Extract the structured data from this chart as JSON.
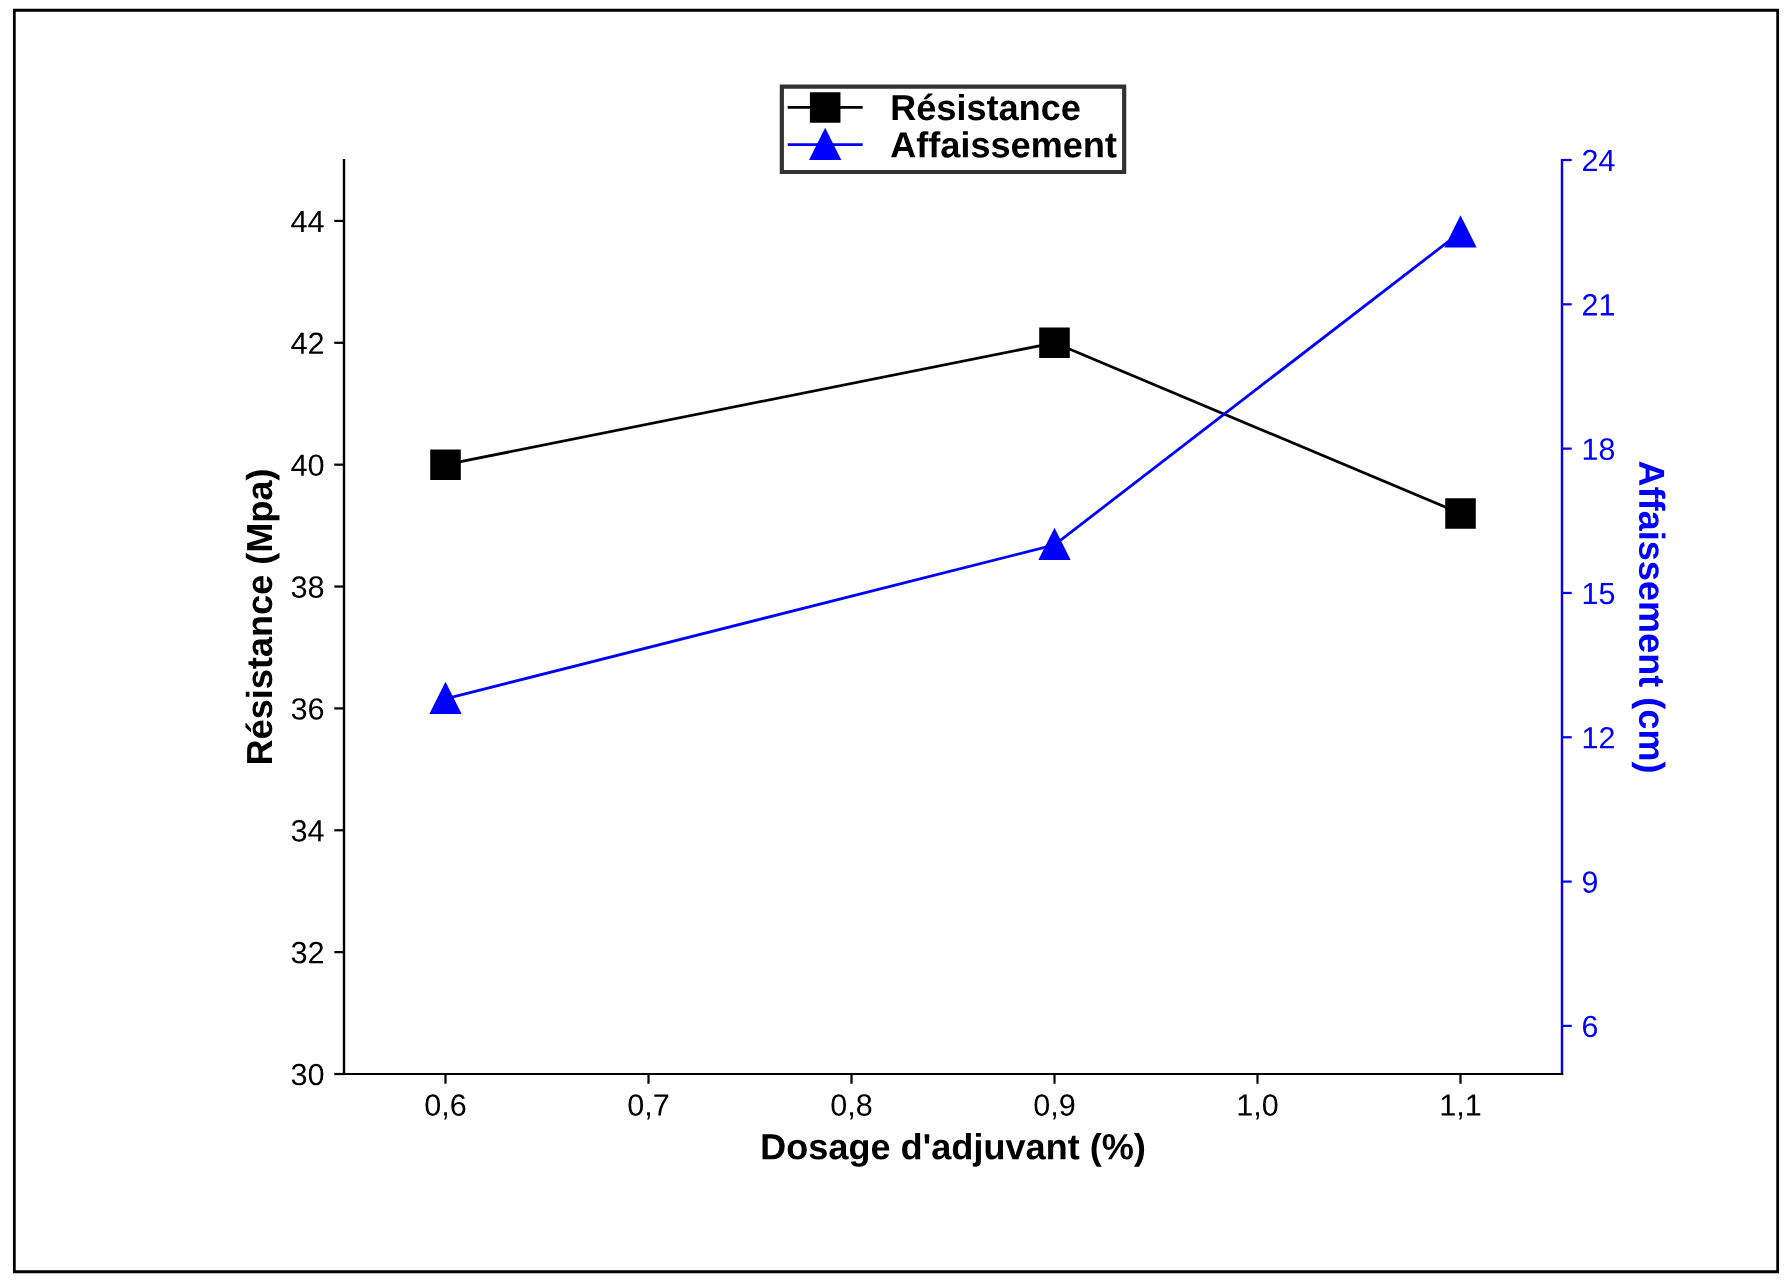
{
  "chart_data": {
    "type": "line",
    "xlabel": "Dosage d'adjuvant (%)",
    "ylabel": "Résistance (Mpa)",
    "y2label": "Affaissement (cm)",
    "x": [
      0.6,
      0.9,
      1.1
    ],
    "series": [
      {
        "name": "Résistance",
        "color": "#000000",
        "marker": "square",
        "values": [
          40,
          42,
          39.2
        ]
      },
      {
        "name": "Affaissement",
        "color": "#0000ff",
        "marker": "triangle",
        "axis": "y2",
        "values": [
          12.8,
          16.0,
          22.5
        ]
      }
    ],
    "xlim": [
      0.55,
      1.15
    ],
    "xticks": [
      {
        "value": 0.6,
        "label": "0,6"
      },
      {
        "value": 0.7,
        "label": "0,7"
      },
      {
        "value": 0.8,
        "label": "0,8"
      },
      {
        "value": 0.9,
        "label": "0,9"
      },
      {
        "value": 1.0,
        "label": "1,0"
      },
      {
        "value": 1.1,
        "label": "1,1"
      }
    ],
    "ylim": [
      30,
      45
    ],
    "yticks": [
      30,
      32,
      34,
      36,
      38,
      40,
      42,
      44
    ],
    "y2lim": [
      5,
      24
    ],
    "y2ticks": [
      6,
      9,
      12,
      15,
      18,
      21,
      24
    ],
    "legend": "top",
    "grid": false,
    "line_style": "solid"
  }
}
